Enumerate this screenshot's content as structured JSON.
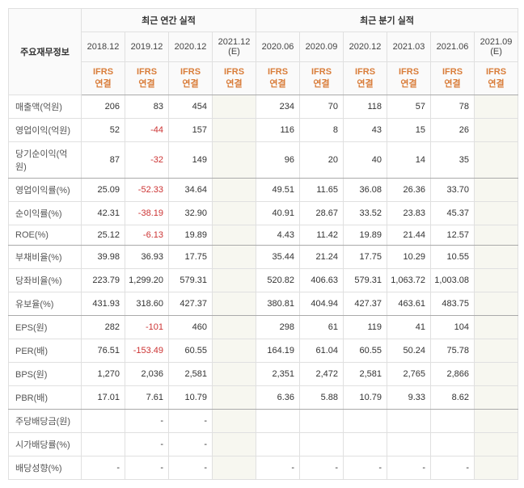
{
  "headers": {
    "row_label": "주요재무정보",
    "annual_section": "최근 연간 실적",
    "quarterly_section": "최근 분기 실적",
    "sub": "IFRS\n연결",
    "annual_periods": [
      "2018.12",
      "2019.12",
      "2020.12",
      "2021.12 (E)"
    ],
    "quarterly_periods": [
      "2020.06",
      "2020.09",
      "2020.12",
      "2021.03",
      "2021.06",
      "2021.09 (E)"
    ]
  },
  "rows": [
    {
      "label": "매출액(억원)",
      "a": [
        "206",
        "83",
        "454",
        ""
      ],
      "q": [
        "234",
        "70",
        "118",
        "57",
        "78",
        ""
      ],
      "group_end": false
    },
    {
      "label": "영업이익(억원)",
      "a": [
        "52",
        "-44",
        "157",
        ""
      ],
      "q": [
        "116",
        "8",
        "43",
        "15",
        "26",
        ""
      ],
      "group_end": false
    },
    {
      "label": "당기순이익(억원)",
      "a": [
        "87",
        "-32",
        "149",
        ""
      ],
      "q": [
        "96",
        "20",
        "40",
        "14",
        "35",
        ""
      ],
      "group_end": true
    },
    {
      "label": "영업이익률(%)",
      "a": [
        "25.09",
        "-52.33",
        "34.64",
        ""
      ],
      "q": [
        "49.51",
        "11.65",
        "36.08",
        "26.36",
        "33.70",
        ""
      ],
      "group_end": false
    },
    {
      "label": "순이익률(%)",
      "a": [
        "42.31",
        "-38.19",
        "32.90",
        ""
      ],
      "q": [
        "40.91",
        "28.67",
        "33.52",
        "23.83",
        "45.37",
        ""
      ],
      "group_end": false
    },
    {
      "label": "ROE(%)",
      "a": [
        "25.12",
        "-6.13",
        "19.89",
        ""
      ],
      "q": [
        "4.43",
        "11.42",
        "19.89",
        "21.44",
        "12.57",
        ""
      ],
      "group_end": true
    },
    {
      "label": "부채비율(%)",
      "a": [
        "39.98",
        "36.93",
        "17.75",
        ""
      ],
      "q": [
        "35.44",
        "21.24",
        "17.75",
        "10.29",
        "10.55",
        ""
      ],
      "group_end": false
    },
    {
      "label": "당좌비율(%)",
      "a": [
        "223.79",
        "1,299.20",
        "579.31",
        ""
      ],
      "q": [
        "520.82",
        "406.63",
        "579.31",
        "1,063.72",
        "1,003.08",
        ""
      ],
      "group_end": false
    },
    {
      "label": "유보율(%)",
      "a": [
        "431.93",
        "318.60",
        "427.37",
        ""
      ],
      "q": [
        "380.81",
        "404.94",
        "427.37",
        "463.61",
        "483.75",
        ""
      ],
      "group_end": true
    },
    {
      "label": "EPS(원)",
      "a": [
        "282",
        "-101",
        "460",
        ""
      ],
      "q": [
        "298",
        "61",
        "119",
        "41",
        "104",
        ""
      ],
      "group_end": false
    },
    {
      "label": "PER(배)",
      "a": [
        "76.51",
        "-153.49",
        "60.55",
        ""
      ],
      "q": [
        "164.19",
        "61.04",
        "60.55",
        "50.24",
        "75.78",
        ""
      ],
      "group_end": false
    },
    {
      "label": "BPS(원)",
      "a": [
        "1,270",
        "2,036",
        "2,581",
        ""
      ],
      "q": [
        "2,351",
        "2,472",
        "2,581",
        "2,765",
        "2,866",
        ""
      ],
      "group_end": false
    },
    {
      "label": "PBR(배)",
      "a": [
        "17.01",
        "7.61",
        "10.79",
        ""
      ],
      "q": [
        "6.36",
        "5.88",
        "10.79",
        "9.33",
        "8.62",
        ""
      ],
      "group_end": true
    },
    {
      "label": "주당배당금(원)",
      "a": [
        "",
        "-",
        "-",
        ""
      ],
      "q": [
        "",
        "",
        "",
        "",
        "",
        ""
      ],
      "group_end": false
    },
    {
      "label": "시가배당률(%)",
      "a": [
        "",
        "-",
        "-",
        ""
      ],
      "q": [
        "",
        "",
        "",
        "",
        "",
        ""
      ],
      "group_end": false
    },
    {
      "label": "배당성향(%)",
      "a": [
        "-",
        "-",
        "-",
        ""
      ],
      "q": [
        "-",
        "-",
        "-",
        "-",
        "-",
        ""
      ],
      "group_end": false
    }
  ],
  "style": {
    "neg_color": "#cc3333",
    "accent_color": "#d97d3a",
    "border_color": "#e0e0e0",
    "bg_header": "#fafafa",
    "bg_est": "#f7f7f0",
    "font_size": 11
  }
}
